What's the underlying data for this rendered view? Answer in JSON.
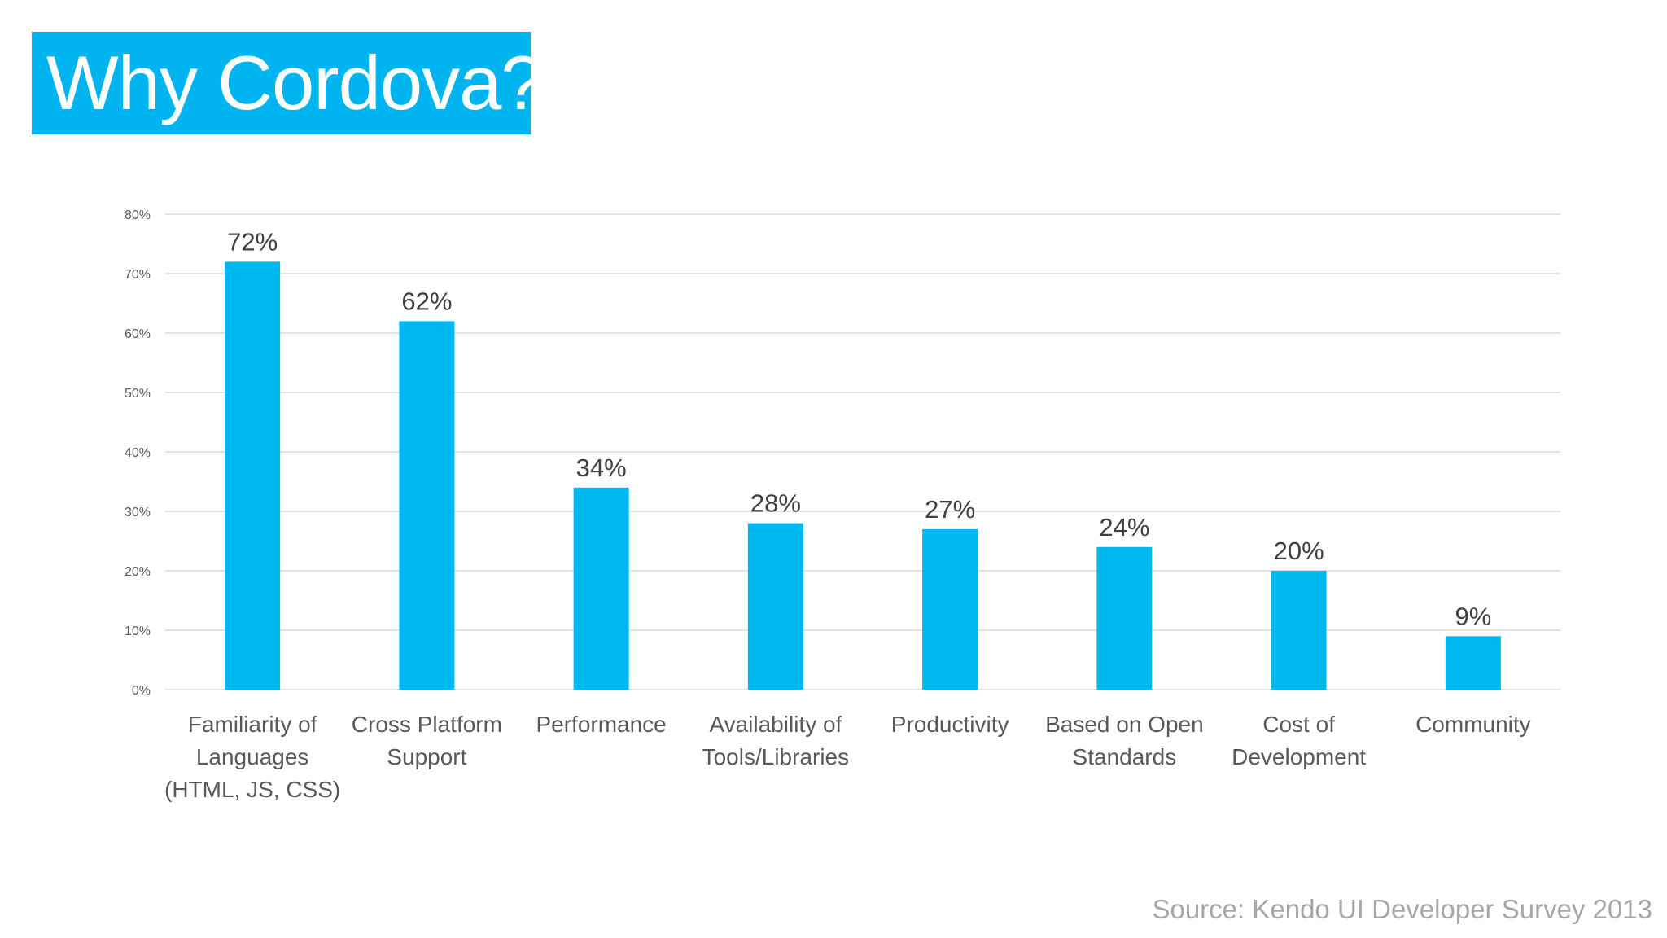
{
  "slide": {
    "title": "Why Cordova?",
    "source": "Source: Kendo UI Developer Survey 2013"
  },
  "colors": {
    "title_bg": "#00b4ef",
    "bar": "#00b8f0",
    "grid": "#d9d9d9",
    "axis_text": "#595959",
    "label_text": "#404040"
  },
  "chart_data": {
    "type": "bar",
    "title": "",
    "xlabel": "",
    "ylabel": "",
    "ylim": [
      0,
      80
    ],
    "yticks": [
      0,
      10,
      20,
      30,
      40,
      50,
      60,
      70,
      80
    ],
    "ytick_labels": [
      "0%",
      "10%",
      "20%",
      "30%",
      "40%",
      "50%",
      "60%",
      "70%",
      "80%"
    ],
    "grid": true,
    "categories": [
      [
        "Familiarity of",
        "Languages",
        "(HTML, JS, CSS)"
      ],
      [
        "Cross Platform",
        "Support"
      ],
      [
        "Performance"
      ],
      [
        "Availability of",
        "Tools/Libraries"
      ],
      [
        "Productivity"
      ],
      [
        "Based on Open",
        "Standards"
      ],
      [
        "Cost of",
        "Development"
      ],
      [
        "Community"
      ]
    ],
    "values": [
      72,
      62,
      34,
      28,
      27,
      24,
      20,
      9
    ],
    "value_labels": [
      "72%",
      "62%",
      "34%",
      "28%",
      "27%",
      "24%",
      "20%",
      "9%"
    ]
  }
}
